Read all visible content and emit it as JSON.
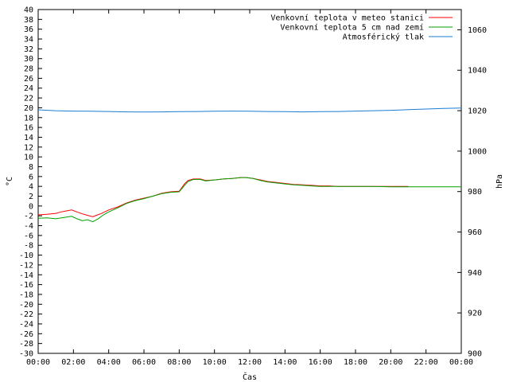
{
  "chart_data": {
    "type": "line",
    "xlabel": "Čas",
    "ylabel_left": "°C",
    "ylabel_right": "hPa",
    "x_ticks": [
      "00:00",
      "02:00",
      "04:00",
      "06:00",
      "08:00",
      "10:00",
      "12:00",
      "14:00",
      "16:00",
      "18:00",
      "20:00",
      "22:00",
      "00:00"
    ],
    "x_range_hours": [
      0,
      24
    ],
    "y_left_range": [
      -30,
      40
    ],
    "y_left_step": 2,
    "y_right_range": [
      900,
      1070
    ],
    "y_right_ticks": [
      900,
      920,
      940,
      960,
      980,
      1000,
      1020,
      1040,
      1060
    ],
    "grid": false,
    "legend_position": "top-right",
    "series": [
      {
        "name": "Venkovní teplota v meteo stanici",
        "color": "#ff0000",
        "axis": "left",
        "points": [
          [
            0,
            -1.8
          ],
          [
            0.5,
            -1.7
          ],
          [
            1.0,
            -1.5
          ],
          [
            1.3,
            -1.2
          ],
          [
            1.6,
            -1.0
          ],
          [
            1.9,
            -0.8
          ],
          [
            2.2,
            -1.2
          ],
          [
            2.5,
            -1.6
          ],
          [
            2.8,
            -1.9
          ],
          [
            3.1,
            -2.2
          ],
          [
            3.3,
            -1.9
          ],
          [
            3.6,
            -1.5
          ],
          [
            4.0,
            -0.8
          ],
          [
            4.5,
            -0.2
          ],
          [
            5.0,
            0.6
          ],
          [
            5.5,
            1.2
          ],
          [
            6.0,
            1.6
          ],
          [
            6.5,
            2.0
          ],
          [
            7.0,
            2.6
          ],
          [
            7.5,
            2.9
          ],
          [
            8.0,
            3.0
          ],
          [
            8.3,
            4.5
          ],
          [
            8.5,
            5.2
          ],
          [
            8.8,
            5.5
          ],
          [
            9.2,
            5.5
          ],
          [
            9.5,
            5.2
          ],
          [
            10,
            5.3
          ],
          [
            10.5,
            5.5
          ],
          [
            11,
            5.6
          ],
          [
            11.5,
            5.8
          ],
          [
            11.8,
            5.8
          ],
          [
            12.2,
            5.6
          ],
          [
            12.6,
            5.3
          ],
          [
            13,
            5.0
          ],
          [
            13.5,
            4.8
          ],
          [
            14,
            4.6
          ],
          [
            14.5,
            4.4
          ],
          [
            15,
            4.3
          ],
          [
            15.5,
            4.2
          ],
          [
            16,
            4.1
          ],
          [
            16.5,
            4.1
          ],
          [
            17,
            4.0
          ],
          [
            18,
            4.0
          ],
          [
            19,
            4.0
          ],
          [
            20,
            4.0
          ],
          [
            21,
            4.0
          ]
        ]
      },
      {
        "name": "Venkovní teplota 5 cm nad zemí",
        "color": "#00a000",
        "axis": "left",
        "points": [
          [
            0,
            -2.5
          ],
          [
            0.5,
            -2.4
          ],
          [
            1.0,
            -2.6
          ],
          [
            1.5,
            -2.3
          ],
          [
            1.9,
            -2.1
          ],
          [
            2.2,
            -2.6
          ],
          [
            2.5,
            -3.0
          ],
          [
            2.8,
            -2.8
          ],
          [
            3.1,
            -3.2
          ],
          [
            3.4,
            -2.6
          ],
          [
            3.7,
            -1.8
          ],
          [
            4.0,
            -1.2
          ],
          [
            4.5,
            -0.4
          ],
          [
            5.0,
            0.5
          ],
          [
            5.5,
            1.1
          ],
          [
            6.0,
            1.5
          ],
          [
            6.5,
            2.0
          ],
          [
            7.0,
            2.5
          ],
          [
            7.5,
            2.8
          ],
          [
            8.0,
            2.9
          ],
          [
            8.3,
            4.2
          ],
          [
            8.5,
            5.0
          ],
          [
            8.8,
            5.4
          ],
          [
            9.2,
            5.4
          ],
          [
            9.5,
            5.1
          ],
          [
            10,
            5.3
          ],
          [
            10.5,
            5.5
          ],
          [
            11,
            5.6
          ],
          [
            11.5,
            5.8
          ],
          [
            11.8,
            5.8
          ],
          [
            12.2,
            5.6
          ],
          [
            12.6,
            5.2
          ],
          [
            13,
            4.9
          ],
          [
            13.5,
            4.7
          ],
          [
            14,
            4.5
          ],
          [
            14.5,
            4.3
          ],
          [
            15,
            4.2
          ],
          [
            15.5,
            4.1
          ],
          [
            16,
            4.0
          ],
          [
            17,
            4.0
          ],
          [
            18,
            4.0
          ],
          [
            19,
            4.0
          ],
          [
            20,
            3.9
          ],
          [
            21,
            3.9
          ],
          [
            22,
            3.9
          ],
          [
            23,
            3.9
          ],
          [
            24,
            3.9
          ]
        ]
      },
      {
        "name": "Atmosférický tlak",
        "color": "#1a7dd4",
        "axis": "right",
        "points": [
          [
            0,
            1020.4
          ],
          [
            1,
            1020.0
          ],
          [
            2,
            1019.8
          ],
          [
            3,
            1019.7
          ],
          [
            4,
            1019.6
          ],
          [
            5,
            1019.4
          ],
          [
            6,
            1019.3
          ],
          [
            7,
            1019.4
          ],
          [
            8,
            1019.5
          ],
          [
            9,
            1019.6
          ],
          [
            10,
            1019.7
          ],
          [
            11,
            1019.8
          ],
          [
            12,
            1019.7
          ],
          [
            13,
            1019.6
          ],
          [
            14,
            1019.5
          ],
          [
            15,
            1019.4
          ],
          [
            16,
            1019.5
          ],
          [
            17,
            1019.6
          ],
          [
            18,
            1019.8
          ],
          [
            19,
            1020.0
          ],
          [
            20,
            1020.2
          ],
          [
            21,
            1020.5
          ],
          [
            22,
            1020.8
          ],
          [
            23,
            1021.1
          ],
          [
            24,
            1021.3
          ]
        ]
      }
    ]
  }
}
